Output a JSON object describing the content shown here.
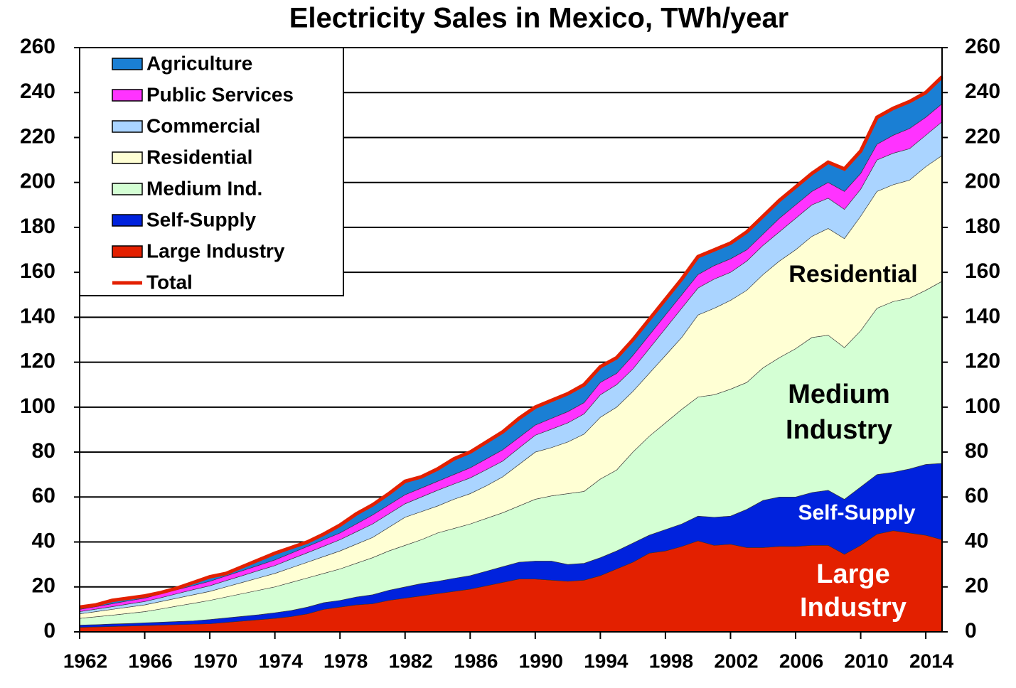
{
  "chart_data": {
    "type": "stacked_area",
    "title": "Electricity Sales in Mexico, TWh/year",
    "x": [
      1962,
      1963,
      1964,
      1965,
      1966,
      1967,
      1968,
      1969,
      1970,
      1971,
      1972,
      1973,
      1974,
      1975,
      1976,
      1977,
      1978,
      1979,
      1980,
      1981,
      1982,
      1983,
      1984,
      1985,
      1986,
      1987,
      1988,
      1989,
      1990,
      1991,
      1992,
      1993,
      1994,
      1995,
      1996,
      1997,
      1998,
      1999,
      2000,
      2001,
      2002,
      2003,
      2004,
      2005,
      2006,
      2007,
      2008,
      2009,
      2010,
      2011,
      2012,
      2013,
      2014,
      2015
    ],
    "xlim": [
      1962,
      2015
    ],
    "xticks": [
      1962,
      1966,
      1970,
      1974,
      1978,
      1982,
      1986,
      1990,
      1994,
      1998,
      2002,
      2006,
      2010,
      2014
    ],
    "ylim": [
      0,
      260
    ],
    "yticks": [
      0,
      20,
      40,
      60,
      80,
      100,
      120,
      140,
      160,
      180,
      200,
      220,
      240,
      260
    ],
    "y2lim": [
      0,
      260
    ],
    "y2ticks": [
      0,
      20,
      40,
      60,
      80,
      100,
      120,
      140,
      160,
      180,
      200,
      220,
      240,
      260
    ],
    "grid": true,
    "legend": "upper left",
    "series": [
      {
        "name": "Large Industry",
        "color": "#e32000",
        "values": [
          2.0,
          2.2,
          2.4,
          2.6,
          2.8,
          3.0,
          3.2,
          3.4,
          3.6,
          4.2,
          4.8,
          5.4,
          6.0,
          6.8,
          8.0,
          10.0,
          11.0,
          12.0,
          12.5,
          14.0,
          15.0,
          16.0,
          17.0,
          18.0,
          19.0,
          20.5,
          22.0,
          23.5,
          23.5,
          23.0,
          22.5,
          23.0,
          25.0,
          28.0,
          31.0,
          35.0,
          36.0,
          38.0,
          40.5,
          38.5,
          39.0,
          37.5,
          37.5,
          38.0,
          38.0,
          38.5,
          38.5,
          34.5,
          38.5,
          43.5,
          45.0,
          44.0,
          43.0,
          41.0
        ]
      },
      {
        "name": "Self-Supply",
        "color": "#0022dd",
        "values": [
          1.0,
          1.0,
          1.1,
          1.1,
          1.2,
          1.3,
          1.4,
          1.5,
          1.9,
          2.0,
          2.1,
          2.2,
          2.5,
          2.7,
          3.0,
          3.0,
          3.0,
          3.5,
          4.0,
          4.5,
          5.0,
          5.5,
          5.5,
          5.8,
          6.0,
          6.5,
          7.0,
          7.5,
          8.0,
          8.5,
          7.5,
          7.5,
          8.0,
          8.0,
          8.5,
          8.0,
          9.5,
          10.0,
          11.0,
          12.5,
          12.5,
          17.0,
          21.0,
          22.0,
          22.0,
          23.5,
          24.5,
          24.5,
          26.0,
          26.5,
          26.0,
          28.5,
          31.5,
          34.0
        ]
      },
      {
        "name": "Medium Ind.",
        "color": "#d4ffd4",
        "values": [
          3.0,
          3.5,
          3.9,
          4.5,
          5.0,
          5.9,
          6.9,
          7.8,
          8.5,
          9.3,
          10.1,
          10.9,
          11.5,
          12.5,
          13.0,
          13.0,
          14.0,
          15.0,
          16.5,
          17.5,
          18.5,
          19.5,
          21.5,
          22.2,
          23.0,
          23.5,
          24.0,
          25.0,
          27.5,
          29.0,
          31.5,
          32.0,
          35.0,
          36.0,
          40.5,
          44.0,
          47.5,
          51.0,
          53.0,
          54.5,
          56.5,
          56.5,
          59.0,
          62.0,
          66.0,
          69.0,
          69.0,
          67.5,
          69.5,
          74.0,
          76.0,
          76.0,
          77.5,
          81.0
        ]
      },
      {
        "name": "Residential",
        "color": "#ffffd4",
        "values": [
          2.0,
          2.3,
          2.6,
          2.8,
          3.0,
          3.3,
          3.5,
          3.8,
          4.0,
          4.5,
          5.0,
          5.5,
          6.0,
          6.5,
          7.0,
          7.5,
          8.0,
          8.5,
          9.0,
          10.5,
          12.5,
          12.5,
          12.0,
          13.0,
          13.5,
          14.5,
          16.0,
          18.5,
          21.0,
          21.5,
          23.0,
          25.5,
          27.5,
          28.0,
          27.0,
          28.0,
          30.0,
          32.0,
          36.5,
          38.5,
          39.5,
          41.0,
          41.5,
          43.0,
          44.0,
          45.0,
          47.5,
          48.5,
          51.0,
          52.0,
          52.0,
          52.5,
          55.0,
          56.0
        ]
      },
      {
        "name": "Commercial",
        "color": "#aad4ff",
        "values": [
          1.0,
          1.1,
          1.2,
          1.4,
          1.5,
          1.7,
          2.0,
          2.3,
          2.5,
          2.8,
          3.0,
          3.3,
          3.5,
          3.9,
          4.2,
          4.6,
          5.0,
          5.5,
          6.0,
          6.0,
          6.0,
          6.5,
          7.0,
          6.8,
          7.0,
          7.2,
          7.0,
          7.3,
          7.5,
          8.2,
          8.5,
          9.0,
          10.0,
          10.0,
          10.0,
          11.0,
          12.0,
          13.0,
          12.0,
          13.0,
          12.5,
          13.0,
          13.0,
          13.0,
          14.0,
          14.0,
          13.5,
          13.0,
          12.0,
          14.0,
          14.0,
          14.0,
          14.0,
          15.0
        ]
      },
      {
        "name": "Public Services",
        "color": "#ff33ff",
        "values": [
          1.0,
          1.1,
          1.3,
          1.4,
          1.5,
          1.7,
          1.8,
          1.8,
          2.0,
          2.1,
          2.2,
          2.3,
          2.5,
          2.6,
          2.8,
          2.9,
          3.0,
          3.5,
          4.0,
          4.0,
          4.0,
          4.0,
          4.0,
          4.2,
          4.5,
          4.8,
          5.0,
          4.7,
          4.5,
          4.8,
          5.0,
          5.0,
          5.5,
          5.0,
          6.0,
          6.0,
          6.0,
          6.0,
          6.0,
          6.0,
          6.0,
          5.0,
          5.0,
          6.0,
          6.0,
          6.0,
          7.0,
          8.0,
          7.0,
          7.0,
          8.0,
          9.0,
          8.0,
          8.0
        ]
      },
      {
        "name": "Agriculture",
        "color": "#1a7fd4",
        "values": [
          1.0,
          0.8,
          1.5,
          1.2,
          1.0,
          0.6,
          0.7,
          1.4,
          2.0,
          1.1,
          1.8,
          2.4,
          3.0,
          2.5,
          2.0,
          2.5,
          3.5,
          4.5,
          4.5,
          5.0,
          6.0,
          5.0,
          5.5,
          7.0,
          7.0,
          7.5,
          8.0,
          8.5,
          8.0,
          8.0,
          8.0,
          8.0,
          7.0,
          7.0,
          7.0,
          7.0,
          7.0,
          7.0,
          8.0,
          7.0,
          7.0,
          8.0,
          8.0,
          8.0,
          8.0,
          8.0,
          9.0,
          10.0,
          10.0,
          12.0,
          12.0,
          12.0,
          11.0,
          12.0
        ]
      }
    ],
    "total": {
      "name": "Total",
      "color": "#e32000",
      "values": [
        11,
        12,
        14,
        15,
        16,
        17.5,
        19.5,
        22,
        24.5,
        26,
        29,
        32,
        35,
        37.5,
        40,
        43.5,
        47.5,
        52.5,
        56.5,
        61.5,
        67,
        69,
        72.5,
        77,
        80,
        84.5,
        89,
        95,
        100,
        103,
        106,
        110,
        118,
        122,
        130,
        139,
        148,
        157,
        167,
        170,
        173,
        178,
        185,
        192,
        198,
        204,
        209,
        206,
        214,
        229,
        233,
        236,
        240,
        247
      ]
    },
    "annotations": [
      {
        "lines": [
          "Residential"
        ],
        "color": "#000000"
      },
      {
        "lines": [
          "Medium",
          "Industry"
        ],
        "color": "#000000"
      },
      {
        "lines": [
          "Self-Supply"
        ],
        "color": "#ffffff"
      },
      {
        "lines": [
          "Large",
          "Industry"
        ],
        "color": "#ffffff"
      }
    ]
  }
}
